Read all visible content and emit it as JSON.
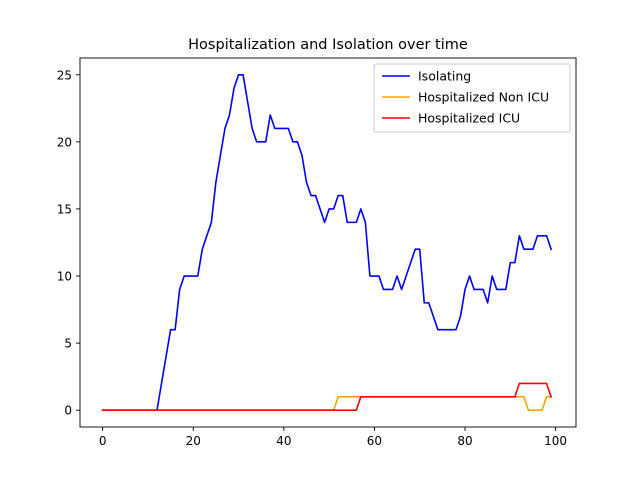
{
  "chart_data": {
    "type": "line",
    "title": "Hospitalization and Isolation over time",
    "xlabel": "",
    "ylabel": "",
    "xlim": [
      -5,
      104.5
    ],
    "ylim": [
      -1.25,
      26.25
    ],
    "xticks": [
      0,
      20,
      40,
      60,
      80,
      100
    ],
    "yticks": [
      0,
      5,
      10,
      15,
      20,
      25
    ],
    "grid": false,
    "legend_position": "top-right",
    "x": [
      0,
      1,
      2,
      3,
      4,
      5,
      6,
      7,
      8,
      9,
      10,
      11,
      12,
      13,
      14,
      15,
      16,
      17,
      18,
      19,
      20,
      21,
      22,
      23,
      24,
      25,
      26,
      27,
      28,
      29,
      30,
      31,
      32,
      33,
      34,
      35,
      36,
      37,
      38,
      39,
      40,
      41,
      42,
      43,
      44,
      45,
      46,
      47,
      48,
      49,
      50,
      51,
      52,
      53,
      54,
      55,
      56,
      57,
      58,
      59,
      60,
      61,
      62,
      63,
      64,
      65,
      66,
      67,
      68,
      69,
      70,
      71,
      72,
      73,
      74,
      75,
      76,
      77,
      78,
      79,
      80,
      81,
      82,
      83,
      84,
      85,
      86,
      87,
      88,
      89,
      90,
      91,
      92,
      93,
      94,
      95,
      96,
      97,
      98,
      99
    ],
    "series": [
      {
        "name": "Isolating",
        "color": "#0000ff",
        "values": [
          0,
          0,
          0,
          0,
          0,
          0,
          0,
          0,
          0,
          0,
          0,
          0,
          0,
          2,
          4,
          6,
          6,
          9,
          10,
          10,
          10,
          10,
          12,
          13,
          14,
          17,
          19,
          21,
          22,
          24,
          25,
          25,
          23,
          21,
          20,
          20,
          20,
          22,
          21,
          21,
          21,
          21,
          20,
          20,
          19,
          17,
          16,
          16,
          15,
          14,
          15,
          15,
          16,
          16,
          14,
          14,
          14,
          15,
          14,
          10,
          10,
          10,
          9,
          9,
          9,
          10,
          9,
          10,
          11,
          12,
          12,
          8,
          8,
          7,
          6,
          6,
          6,
          6,
          6,
          7,
          9,
          10,
          9,
          9,
          9,
          8,
          10,
          9,
          9,
          9,
          11,
          11,
          13,
          12,
          12,
          12,
          13,
          13,
          13,
          12
        ]
      },
      {
        "name": "Hospitalized Non ICU",
        "color": "#ffa500",
        "values": [
          0,
          0,
          0,
          0,
          0,
          0,
          0,
          0,
          0,
          0,
          0,
          0,
          0,
          0,
          0,
          0,
          0,
          0,
          0,
          0,
          0,
          0,
          0,
          0,
          0,
          0,
          0,
          0,
          0,
          0,
          0,
          0,
          0,
          0,
          0,
          0,
          0,
          0,
          0,
          0,
          0,
          0,
          0,
          0,
          0,
          0,
          0,
          0,
          0,
          0,
          0,
          0,
          1,
          1,
          1,
          1,
          1,
          1,
          1,
          1,
          1,
          1,
          1,
          1,
          1,
          1,
          1,
          1,
          1,
          1,
          1,
          1,
          1,
          1,
          1,
          1,
          1,
          1,
          1,
          1,
          1,
          1,
          1,
          1,
          1,
          1,
          1,
          1,
          1,
          1,
          1,
          1,
          1,
          1,
          0,
          0,
          0,
          0,
          1,
          1
        ]
      },
      {
        "name": "Hospitalized ICU",
        "color": "#ff0000",
        "values": [
          0,
          0,
          0,
          0,
          0,
          0,
          0,
          0,
          0,
          0,
          0,
          0,
          0,
          0,
          0,
          0,
          0,
          0,
          0,
          0,
          0,
          0,
          0,
          0,
          0,
          0,
          0,
          0,
          0,
          0,
          0,
          0,
          0,
          0,
          0,
          0,
          0,
          0,
          0,
          0,
          0,
          0,
          0,
          0,
          0,
          0,
          0,
          0,
          0,
          0,
          0,
          0,
          0,
          0,
          0,
          0,
          0,
          1,
          1,
          1,
          1,
          1,
          1,
          1,
          1,
          1,
          1,
          1,
          1,
          1,
          1,
          1,
          1,
          1,
          1,
          1,
          1,
          1,
          1,
          1,
          1,
          1,
          1,
          1,
          1,
          1,
          1,
          1,
          1,
          1,
          1,
          1,
          2,
          2,
          2,
          2,
          2,
          2,
          2,
          1
        ]
      }
    ]
  }
}
